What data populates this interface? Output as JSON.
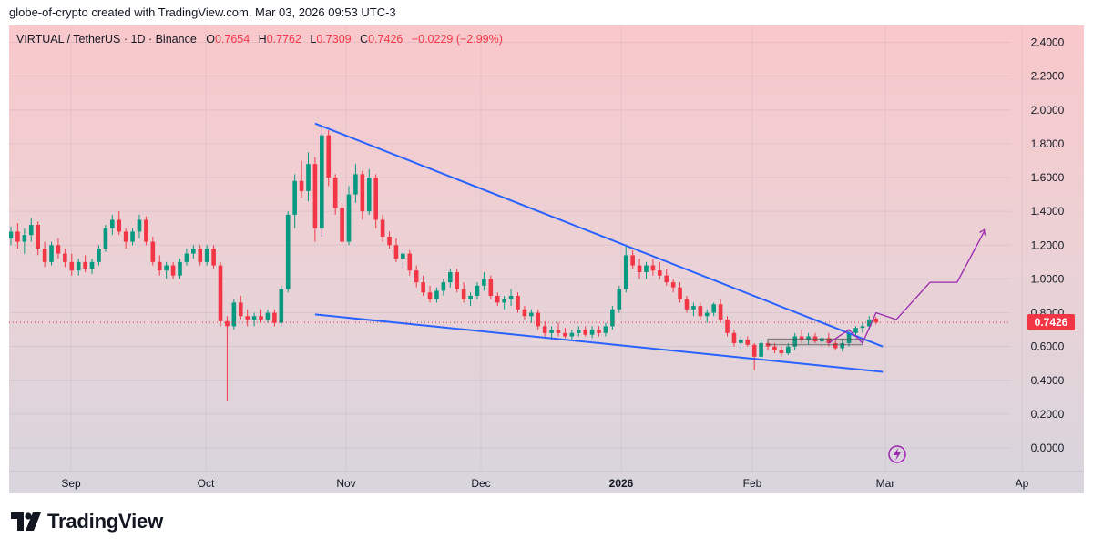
{
  "header": {
    "caption": "globe-of-crypto created with TradingView.com, Mar 03, 2026 09:53 UTC-3"
  },
  "legend": {
    "symbol": "VIRTUAL / TetherUS · 1D · Binance",
    "o_label": "O",
    "o_value": "0.7654",
    "h_label": "H",
    "h_value": "0.7762",
    "l_label": "L",
    "l_value": "0.7309",
    "c_label": "C",
    "c_value": "0.7426",
    "change": "−0.0229 (−2.99%)"
  },
  "last_price": "0.7426",
  "brand": {
    "name": "TradingView"
  },
  "colors": {
    "up": "#089981",
    "down": "#f23645",
    "trendline": "#2962ff",
    "projection": "#9c27b0",
    "bg_top": "#f8c9cc",
    "bg_bottom": "#d9d5de"
  },
  "chart_data": {
    "type": "candlestick",
    "y_ticks": [
      "2.4000",
      "2.2000",
      "2.0000",
      "1.8000",
      "1.6000",
      "1.4000",
      "1.2000",
      "1.0000",
      "0.8000",
      "0.6000",
      "0.4000",
      "0.2000",
      "0.0000"
    ],
    "x_ticks": [
      "Sep",
      "Oct",
      "Nov",
      "Dec",
      "2026",
      "Feb",
      "Mar",
      "Ap"
    ],
    "ylim": [
      -0.14,
      2.5
    ],
    "grid": true,
    "candles_ohlc": [
      [
        1.24,
        1.31,
        1.2,
        1.28
      ],
      [
        1.28,
        1.33,
        1.18,
        1.22
      ],
      [
        1.22,
        1.3,
        1.15,
        1.26
      ],
      [
        1.26,
        1.36,
        1.22,
        1.32
      ],
      [
        1.32,
        1.34,
        1.14,
        1.18
      ],
      [
        1.18,
        1.22,
        1.07,
        1.1
      ],
      [
        1.1,
        1.22,
        1.08,
        1.2
      ],
      [
        1.2,
        1.24,
        1.12,
        1.15
      ],
      [
        1.15,
        1.18,
        1.07,
        1.1
      ],
      [
        1.1,
        1.15,
        1.02,
        1.05
      ],
      [
        1.05,
        1.12,
        1.02,
        1.1
      ],
      [
        1.1,
        1.14,
        1.04,
        1.06
      ],
      [
        1.06,
        1.12,
        1.03,
        1.1
      ],
      [
        1.1,
        1.2,
        1.08,
        1.18
      ],
      [
        1.18,
        1.32,
        1.16,
        1.3
      ],
      [
        1.3,
        1.38,
        1.26,
        1.35
      ],
      [
        1.35,
        1.4,
        1.26,
        1.28
      ],
      [
        1.28,
        1.3,
        1.18,
        1.22
      ],
      [
        1.22,
        1.3,
        1.2,
        1.28
      ],
      [
        1.28,
        1.38,
        1.24,
        1.35
      ],
      [
        1.35,
        1.37,
        1.2,
        1.22
      ],
      [
        1.22,
        1.25,
        1.08,
        1.1
      ],
      [
        1.1,
        1.14,
        1.02,
        1.05
      ],
      [
        1.05,
        1.1,
        1.0,
        1.08
      ],
      [
        1.08,
        1.1,
        1.0,
        1.02
      ],
      [
        1.02,
        1.12,
        1.0,
        1.1
      ],
      [
        1.1,
        1.18,
        1.08,
        1.15
      ],
      [
        1.15,
        1.2,
        1.12,
        1.18
      ],
      [
        1.18,
        1.2,
        1.08,
        1.1
      ],
      [
        1.1,
        1.2,
        1.08,
        1.18
      ],
      [
        1.18,
        1.2,
        1.06,
        1.08
      ],
      [
        1.08,
        1.1,
        0.72,
        0.75
      ],
      [
        0.75,
        0.78,
        0.28,
        0.72
      ],
      [
        0.72,
        0.88,
        0.7,
        0.86
      ],
      [
        0.86,
        0.9,
        0.76,
        0.78
      ],
      [
        0.78,
        0.82,
        0.72,
        0.76
      ],
      [
        0.76,
        0.8,
        0.72,
        0.78
      ],
      [
        0.78,
        0.82,
        0.74,
        0.76
      ],
      [
        0.76,
        0.82,
        0.74,
        0.8
      ],
      [
        0.8,
        0.82,
        0.72,
        0.74
      ],
      [
        0.74,
        0.96,
        0.72,
        0.94
      ],
      [
        0.94,
        1.4,
        0.92,
        1.38
      ],
      [
        1.38,
        1.62,
        1.3,
        1.58
      ],
      [
        1.58,
        1.7,
        1.48,
        1.52
      ],
      [
        1.52,
        1.75,
        1.46,
        1.68
      ],
      [
        1.68,
        1.72,
        1.22,
        1.3
      ],
      [
        1.3,
        1.9,
        1.25,
        1.85
      ],
      [
        1.85,
        1.88,
        1.55,
        1.6
      ],
      [
        1.6,
        1.62,
        1.38,
        1.42
      ],
      [
        1.42,
        1.45,
        1.2,
        1.22
      ],
      [
        1.22,
        1.55,
        1.2,
        1.5
      ],
      [
        1.5,
        1.68,
        1.45,
        1.62
      ],
      [
        1.62,
        1.64,
        1.35,
        1.4
      ],
      [
        1.4,
        1.65,
        1.38,
        1.6
      ],
      [
        1.6,
        1.62,
        1.3,
        1.35
      ],
      [
        1.35,
        1.38,
        1.22,
        1.25
      ],
      [
        1.25,
        1.28,
        1.18,
        1.2
      ],
      [
        1.2,
        1.24,
        1.1,
        1.12
      ],
      [
        1.12,
        1.18,
        1.06,
        1.15
      ],
      [
        1.15,
        1.17,
        1.02,
        1.05
      ],
      [
        1.05,
        1.08,
        0.95,
        0.98
      ],
      [
        0.98,
        1.02,
        0.9,
        0.92
      ],
      [
        0.92,
        0.96,
        0.86,
        0.88
      ],
      [
        0.88,
        0.95,
        0.86,
        0.93
      ],
      [
        0.93,
        1.0,
        0.9,
        0.98
      ],
      [
        0.98,
        1.06,
        0.95,
        1.04
      ],
      [
        1.04,
        1.06,
        0.92,
        0.94
      ],
      [
        0.94,
        0.98,
        0.86,
        0.88
      ],
      [
        0.88,
        0.92,
        0.84,
        0.9
      ],
      [
        0.9,
        0.98,
        0.88,
        0.96
      ],
      [
        0.96,
        1.04,
        0.93,
        1.0
      ],
      [
        1.0,
        1.02,
        0.88,
        0.9
      ],
      [
        0.9,
        0.92,
        0.84,
        0.86
      ],
      [
        0.86,
        0.9,
        0.82,
        0.88
      ],
      [
        0.88,
        0.94,
        0.84,
        0.9
      ],
      [
        0.9,
        0.92,
        0.8,
        0.82
      ],
      [
        0.82,
        0.84,
        0.76,
        0.78
      ],
      [
        0.78,
        0.82,
        0.74,
        0.8
      ],
      [
        0.8,
        0.82,
        0.7,
        0.72
      ],
      [
        0.72,
        0.75,
        0.66,
        0.68
      ],
      [
        0.68,
        0.72,
        0.64,
        0.7
      ],
      [
        0.7,
        0.74,
        0.66,
        0.68
      ],
      [
        0.68,
        0.71,
        0.65,
        0.66
      ],
      [
        0.66,
        0.7,
        0.64,
        0.68
      ],
      [
        0.68,
        0.72,
        0.66,
        0.7
      ],
      [
        0.7,
        0.72,
        0.66,
        0.67
      ],
      [
        0.67,
        0.72,
        0.65,
        0.7
      ],
      [
        0.7,
        0.72,
        0.66,
        0.68
      ],
      [
        0.68,
        0.74,
        0.66,
        0.72
      ],
      [
        0.72,
        0.84,
        0.7,
        0.82
      ],
      [
        0.82,
        0.96,
        0.8,
        0.94
      ],
      [
        0.94,
        1.2,
        0.92,
        1.14
      ],
      [
        1.14,
        1.17,
        1.06,
        1.08
      ],
      [
        1.08,
        1.12,
        1.0,
        1.04
      ],
      [
        1.04,
        1.1,
        1.0,
        1.08
      ],
      [
        1.08,
        1.12,
        1.02,
        1.05
      ],
      [
        1.05,
        1.1,
        1.0,
        1.02
      ],
      [
        1.02,
        1.06,
        0.96,
        0.98
      ],
      [
        0.98,
        1.0,
        0.92,
        0.95
      ],
      [
        0.95,
        0.98,
        0.86,
        0.88
      ],
      [
        0.88,
        0.9,
        0.8,
        0.82
      ],
      [
        0.82,
        0.86,
        0.78,
        0.84
      ],
      [
        0.84,
        0.86,
        0.76,
        0.78
      ],
      [
        0.78,
        0.82,
        0.74,
        0.8
      ],
      [
        0.8,
        0.86,
        0.78,
        0.85
      ],
      [
        0.85,
        0.88,
        0.74,
        0.76
      ],
      [
        0.76,
        0.78,
        0.66,
        0.68
      ],
      [
        0.68,
        0.7,
        0.6,
        0.62
      ],
      [
        0.62,
        0.66,
        0.58,
        0.64
      ],
      [
        0.64,
        0.66,
        0.6,
        0.61
      ],
      [
        0.61,
        0.62,
        0.46,
        0.54
      ],
      [
        0.54,
        0.64,
        0.52,
        0.62
      ],
      [
        0.62,
        0.64,
        0.58,
        0.6
      ],
      [
        0.6,
        0.62,
        0.56,
        0.58
      ],
      [
        0.58,
        0.6,
        0.54,
        0.56
      ],
      [
        0.56,
        0.62,
        0.55,
        0.6
      ],
      [
        0.6,
        0.68,
        0.58,
        0.66
      ],
      [
        0.66,
        0.7,
        0.62,
        0.64
      ],
      [
        0.64,
        0.68,
        0.61,
        0.66
      ],
      [
        0.66,
        0.68,
        0.62,
        0.63
      ],
      [
        0.63,
        0.66,
        0.6,
        0.65
      ],
      [
        0.65,
        0.68,
        0.6,
        0.62
      ],
      [
        0.62,
        0.64,
        0.58,
        0.59
      ],
      [
        0.59,
        0.64,
        0.57,
        0.62
      ],
      [
        0.62,
        0.7,
        0.6,
        0.68
      ],
      [
        0.68,
        0.72,
        0.66,
        0.71
      ],
      [
        0.71,
        0.74,
        0.68,
        0.72
      ],
      [
        0.72,
        0.78,
        0.7,
        0.76
      ],
      [
        0.7654,
        0.7762,
        0.7309,
        0.7426
      ]
    ],
    "annotations": [
      "falling wedge trendlines",
      "bullish projection path"
    ]
  }
}
